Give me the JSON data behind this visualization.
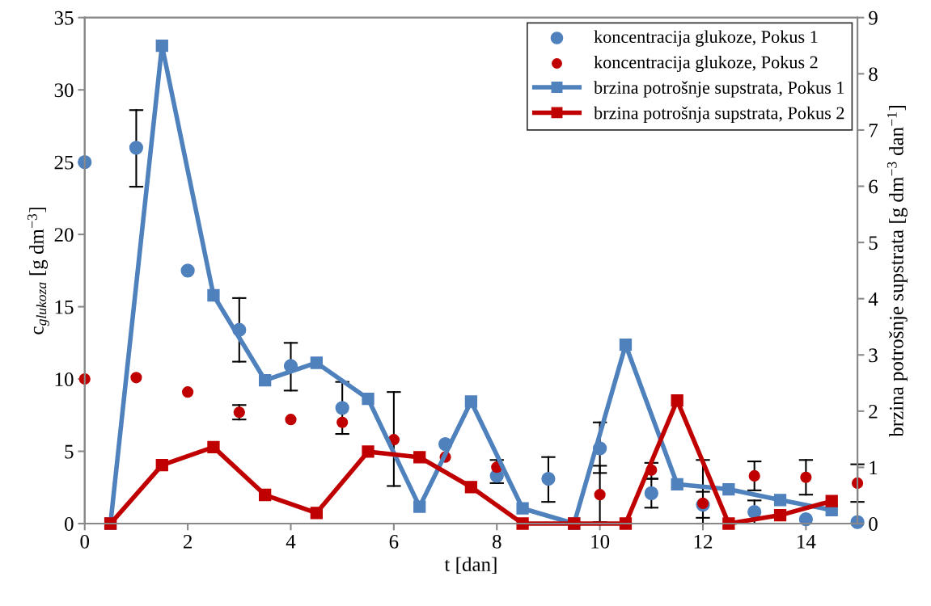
{
  "chart_data": {
    "type": "scatter",
    "xlabel": "t [dan]",
    "ylabel": "c$_{glukoza}$ [g dm$^{−3}$]",
    "y2label": "brzina potrošnje supstrata [g dm$^{−3}$ dan$^{−1}$]",
    "xlim": [
      0,
      15
    ],
    "xticks": [
      0,
      2,
      4,
      6,
      8,
      10,
      12,
      14
    ],
    "ylim": [
      0,
      35
    ],
    "yticks": [
      0,
      5,
      10,
      15,
      20,
      25,
      30,
      35
    ],
    "y2lim": [
      0,
      9
    ],
    "y2ticks": [
      0,
      1,
      2,
      3,
      4,
      5,
      6,
      7,
      8,
      9
    ],
    "grid": false,
    "legend": "top right",
    "series": [
      {
        "name": "koncentracija glukoze, Pokus 1",
        "marker": "circle",
        "color": "#4f81bd",
        "x": [
          0,
          1,
          2,
          3,
          4,
          5,
          6,
          7,
          8,
          9,
          10,
          11,
          12,
          13,
          14,
          15
        ],
        "values": [
          25.0,
          26.0,
          17.5,
          13.4,
          10.9,
          8.0,
          null,
          5.5,
          3.3,
          3.1,
          5.2,
          2.1,
          1.3,
          0.8,
          0.3,
          0.1
        ],
        "errors": [
          null,
          [
            23.3,
            28.6
          ],
          null,
          [
            11.2,
            15.6
          ],
          [
            9.2,
            12.5
          ],
          [
            6.2,
            9.8
          ],
          null,
          null,
          null,
          [
            1.5,
            4.6
          ],
          [
            3.5,
            7.0
          ],
          [
            1.1,
            3.1
          ],
          [
            0.4,
            2.2
          ],
          [
            0,
            1.6
          ],
          null,
          null
        ]
      },
      {
        "name": "koncentracija glukoze, Pokus 2",
        "marker": "circle",
        "color": "#c00000",
        "x": [
          0,
          1,
          2,
          3,
          4,
          5,
          6,
          7,
          8,
          9,
          10,
          11,
          12,
          13,
          14,
          15
        ],
        "values": [
          10.0,
          10.1,
          9.1,
          7.7,
          7.2,
          7.0,
          5.8,
          4.6,
          3.9,
          null,
          2.0,
          3.7,
          1.4,
          3.3,
          3.2,
          2.8
        ],
        "errors": [
          null,
          null,
          null,
          [
            7.2,
            8.2
          ],
          null,
          null,
          [
            2.6,
            9.1
          ],
          null,
          [
            2.8,
            4.4
          ],
          null,
          [
            0.1,
            4.0
          ],
          [
            3.1,
            4.2
          ],
          [
            0,
            4.4
          ],
          [
            2.3,
            4.3
          ],
          [
            2.0,
            4.4
          ],
          [
            1.5,
            4.1
          ]
        ]
      },
      {
        "name": "brzina potrošnje supstrata, Pokus 1",
        "type": "line",
        "axis": "y2",
        "marker": "square",
        "line_style": "solid",
        "color": "#4f81bd",
        "x": [
          0.5,
          1.5,
          2.5,
          3.5,
          4.5,
          5.5,
          6.5,
          7.5,
          8.5,
          9.5,
          10.5,
          11.5,
          12.5,
          13.5,
          14.5
        ],
        "values": [
          0,
          8.5,
          4.06,
          2.55,
          2.86,
          2.22,
          0.3,
          2.17,
          0.27,
          0,
          3.18,
          0.7,
          0.61,
          0.42,
          0.24
        ]
      },
      {
        "name": "brzina potrošnja supstrata, Pokus 2",
        "type": "line",
        "axis": "y2",
        "marker": "square",
        "line_style": "solid",
        "color": "#c00000",
        "x": [
          0.5,
          1.5,
          2.5,
          3.5,
          4.5,
          5.5,
          6.5,
          7.5,
          8.5,
          9.5,
          10.5,
          11.5,
          12.5,
          13.5,
          14.5
        ],
        "values": [
          0,
          1.04,
          1.36,
          0.51,
          0.19,
          1.28,
          1.18,
          0.65,
          0,
          0,
          0,
          2.19,
          0,
          0.15,
          0.4
        ]
      }
    ]
  }
}
